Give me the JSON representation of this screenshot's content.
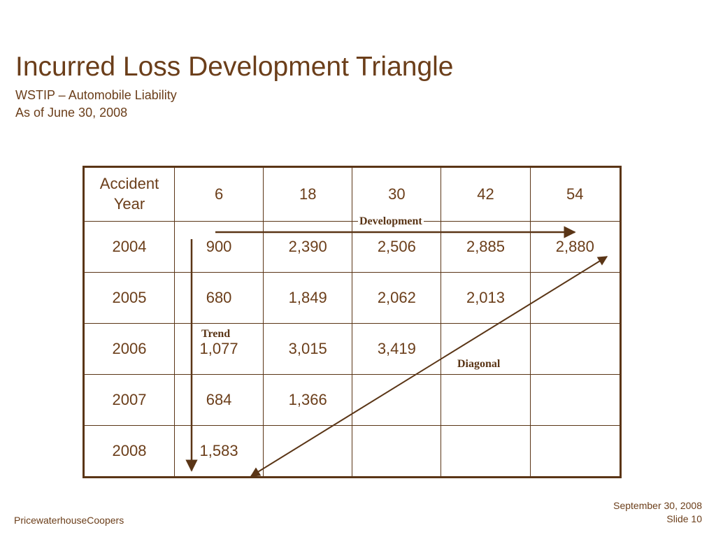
{
  "title": "Incurred Loss Development Triangle",
  "subtitle1": "WSTIP – Automobile Liability",
  "subtitle2": "As of June 30, 2008",
  "table": {
    "header": {
      "year_line1": "Accident",
      "year_line2": "Year"
    },
    "development_ages": [
      "6",
      "18",
      "30",
      "42",
      "54"
    ],
    "rows": [
      {
        "year": "2004",
        "values": [
          "900",
          "2,390",
          "2,506",
          "2,885",
          "2,880"
        ]
      },
      {
        "year": "2005",
        "values": [
          "680",
          "1,849",
          "2,062",
          "2,013",
          ""
        ]
      },
      {
        "year": "2006",
        "values": [
          "1,077",
          "3,015",
          "3,419",
          "",
          ""
        ]
      },
      {
        "year": "2007",
        "values": [
          "684",
          "1,366",
          "",
          "",
          ""
        ]
      },
      {
        "year": "2008",
        "values": [
          "1,583",
          "",
          "",
          "",
          ""
        ]
      }
    ]
  },
  "annotations": {
    "development": "Development",
    "trend": "Trend",
    "diagonal": "Diagonal"
  },
  "footer": {
    "company": "PricewaterhouseCoopers",
    "date": "September 30, 2008",
    "slide": "Slide 10"
  },
  "colors": {
    "text": "#6b3e1a",
    "border": "#5a3516",
    "arrow": "#5a3516"
  }
}
